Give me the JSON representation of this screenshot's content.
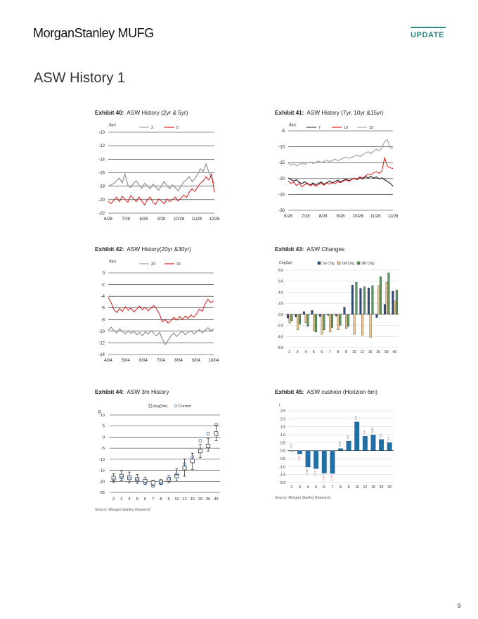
{
  "header": {
    "logo": "MorganStanley MUFG",
    "badge": "UPDATE"
  },
  "page_title": "ASW History 1",
  "page_number": "9",
  "exhibits": [
    {
      "num": "Exhibit 40:",
      "title": "ASW History (2yr & 5yr)"
    },
    {
      "num": "Exhibit 41:",
      "title": "ASW History (7yr, 10yr &15yr)"
    },
    {
      "num": "Exhibit 42:",
      "title": "ASW History(20yr &30yr)"
    },
    {
      "num": "Exhibit 43:",
      "title": "ASW Changes"
    },
    {
      "num": "Exhibit 44:",
      "title": "ASW 3m History"
    },
    {
      "num": "Exhibit 45:",
      "title": "ASW cushion (Horizion 6m)"
    }
  ],
  "sources": {
    "left": "Source: Morgan Stanley Research",
    "right": "Source: Morgan Stanley Research"
  },
  "chart_data": [
    {
      "type": "line",
      "ylabel": "(bp)",
      "ylim": [
        -22,
        -10
      ],
      "yticks": [
        "-10",
        "-12",
        "-14",
        "-16",
        "-18",
        "-20",
        "-22"
      ],
      "xticks": [
        "6/28",
        "7/28",
        "8/28",
        "9/28",
        "10/28",
        "11/28",
        "12/28"
      ],
      "legend_position": "top",
      "series": [
        {
          "name": "2",
          "color": "#999999",
          "values": [
            -18,
            -17.8,
            -17.6,
            -17.2,
            -16.8,
            -17.5,
            -16.2,
            -17.8,
            -18.2,
            -17.6,
            -17.2,
            -17.8,
            -18.3,
            -17.6,
            -17.9,
            -18.4,
            -17.7,
            -18.1,
            -18.6,
            -18.0,
            -17.3,
            -17.9,
            -18.4,
            -17.8,
            -18.2,
            -18.7,
            -18.0,
            -17.4,
            -17.0,
            -16.6,
            -17.3,
            -16.9,
            -16.2,
            -15.4,
            -15.8,
            -14.7,
            -15.9,
            -16.8,
            -17.6
          ]
        },
        {
          "name": "5",
          "color": "#e00000",
          "values": [
            -20.2,
            -20.6,
            -20.1,
            -19.6,
            -20.3,
            -19.5,
            -19.9,
            -20.4,
            -19.4,
            -19.8,
            -20.3,
            -19.6,
            -20.2,
            -20.8,
            -20.0,
            -19.6,
            -20.4,
            -20.7,
            -19.9,
            -20.2,
            -20.6,
            -19.9,
            -20.3,
            -20.0,
            -19.6,
            -20.2,
            -19.8,
            -19.3,
            -19.7,
            -18.9,
            -18.4,
            -18.8,
            -18.1,
            -17.6,
            -17.2,
            -16.6,
            -17.1,
            -16.2,
            -18.9
          ]
        }
      ]
    },
    {
      "type": "line",
      "ylabel": "(bp)",
      "ylim": [
        -30,
        -5
      ],
      "yticks": [
        "-5",
        "-10",
        "-15",
        "-20",
        "-25",
        "-30"
      ],
      "xticks": [
        "6/28",
        "7/28",
        "8/28",
        "9/28",
        "10/28",
        "11/28",
        "12/28"
      ],
      "legend_position": "top",
      "series": [
        {
          "name": "7",
          "color": "#333333",
          "values": [
            -19.8,
            -20.3,
            -20.8,
            -20.4,
            -21.2,
            -21.6,
            -21.0,
            -21.7,
            -22.1,
            -21.4,
            -22.0,
            -21.5,
            -21.1,
            -21.8,
            -21.3,
            -20.8,
            -21.4,
            -20.9,
            -20.5,
            -21.1,
            -20.6,
            -20.2,
            -20.7,
            -20.3,
            -19.9,
            -20.4,
            -19.6,
            -20.1,
            -19.4,
            -19.8,
            -19.3,
            -19.9,
            -19.5,
            -20.1,
            -19.8,
            -20.4,
            -20.9,
            -21.5,
            -22.4
          ]
        },
        {
          "name": "10",
          "color": "#e00000",
          "values": [
            -20.8,
            -21.6,
            -21.1,
            -22.2,
            -21.5,
            -22.6,
            -22.0,
            -21.4,
            -22.3,
            -21.7,
            -22.5,
            -21.9,
            -21.5,
            -22.1,
            -21.4,
            -21.8,
            -21.2,
            -21.6,
            -21.0,
            -21.3,
            -20.8,
            -20.4,
            -20.9,
            -20.3,
            -19.9,
            -20.2,
            -19.5,
            -19.9,
            -19.2,
            -18.6,
            -18.9,
            -18.2,
            -17.8,
            -18.4,
            -17.6,
            -13.4,
            -16.2,
            -16.6,
            -16.9
          ]
        },
        {
          "name": "15",
          "color": "#aaaaaa",
          "values": [
            -15.2,
            -15.8,
            -15.4,
            -16.0,
            -15.6,
            -15.1,
            -15.5,
            -15.0,
            -14.8,
            -15.3,
            -14.9,
            -14.5,
            -15.0,
            -14.6,
            -14.2,
            -14.7,
            -14.3,
            -13.9,
            -14.4,
            -14.0,
            -13.6,
            -13.2,
            -13.7,
            -13.3,
            -13.0,
            -12.6,
            -13.1,
            -12.5,
            -12.0,
            -11.6,
            -12.2,
            -11.4,
            -10.8,
            -11.3,
            -10.4,
            -8.3,
            -7.8,
            -10.4,
            -10.6
          ]
        }
      ]
    },
    {
      "type": "line",
      "ylabel": "(bp)",
      "ylim": [
        -14,
        0
      ],
      "yticks": [
        "0",
        "-2",
        "-4",
        "-6",
        "-8",
        "-10",
        "-12",
        "-14"
      ],
      "xticks": [
        "4/04",
        "5/04",
        "6/04",
        "7/04",
        "8/04",
        "9/04",
        "10/04"
      ],
      "legend_position": "top",
      "series": [
        {
          "name": "20",
          "color": "#999999",
          "values": [
            -9.8,
            -9.3,
            -9.9,
            -10.3,
            -9.6,
            -10.1,
            -10.5,
            -9.9,
            -10.4,
            -10.0,
            -10.6,
            -10.2,
            -10.8,
            -10.1,
            -10.5,
            -9.9,
            -10.4,
            -10.8,
            -10.2,
            -11.4,
            -12.3,
            -11.6,
            -10.8,
            -10.3,
            -10.9,
            -10.4,
            -10.0,
            -10.6,
            -10.2,
            -9.9,
            -10.5,
            -10.1,
            -9.7,
            -10.3,
            -9.8,
            -9.4,
            -9.9,
            -9.6
          ]
        },
        {
          "name": "30",
          "color": "#e00000",
          "values": [
            -4.2,
            -5.1,
            -6.3,
            -6.8,
            -6.1,
            -6.6,
            -5.8,
            -6.4,
            -6.0,
            -6.7,
            -6.2,
            -5.7,
            -6.3,
            -5.9,
            -6.5,
            -6.0,
            -5.6,
            -6.2,
            -7.1,
            -8.4,
            -8.0,
            -8.6,
            -8.2,
            -7.6,
            -8.1,
            -7.5,
            -8.0,
            -7.4,
            -7.8,
            -7.2,
            -7.6,
            -7.0,
            -6.2,
            -6.6,
            -5.3,
            -4.5,
            -5.1,
            -4.8
          ]
        }
      ]
    },
    {
      "type": "bar",
      "ylabel": "Chg(bp)",
      "ylim": [
        -6,
        8
      ],
      "yticks": [
        "8.0",
        "6.0",
        "4.0",
        "2.0",
        "0.0",
        "-2.0",
        "-4.0",
        "-6.0"
      ],
      "categories": [
        "2",
        "3",
        "4",
        "5",
        "6",
        "7",
        "8",
        "9",
        "10",
        "12",
        "15",
        "20",
        "30",
        "40"
      ],
      "legend_position": "top",
      "series": [
        {
          "name": "1w Chg",
          "color": "#2e4a7d",
          "values": [
            -0.7,
            -0.5,
            0.5,
            0.7,
            -0.4,
            -0.2,
            -0.3,
            1.3,
            5.3,
            4.7,
            4.8,
            -0.6,
            1.8,
            4.2
          ]
        },
        {
          "name": "1M Chg",
          "color": "#f0c78a",
          "values": [
            -1.6,
            -2.8,
            -1.5,
            -3.0,
            -3.6,
            -3.2,
            -2.8,
            -2.6,
            -3.6,
            -3.8,
            -4.2,
            5.2,
            5.8,
            2.4
          ]
        },
        {
          "name": "3M Chg",
          "color": "#5a9a5e",
          "values": [
            -1.2,
            -1.8,
            -2.2,
            -3.2,
            -2.8,
            -2.4,
            -2.0,
            -2.2,
            5.8,
            5.0,
            5.2,
            6.8,
            7.5,
            4.4
          ]
        }
      ]
    },
    {
      "type": "scatter",
      "ylabel": "bp",
      "ylim": [
        -25,
        10
      ],
      "yticks": [
        "10",
        "5",
        "0",
        "-5",
        "-10",
        "-15",
        "-20",
        "-25"
      ],
      "categories": [
        "2",
        "3",
        "4",
        "5",
        "6",
        "7",
        "8",
        "9",
        "10",
        "12",
        "15",
        "20",
        "30",
        "40"
      ],
      "legend_position": "top",
      "series": [
        {
          "name": "Avg(3m)",
          "color": "#222222",
          "avg": [
            -18.5,
            -17.6,
            -18.4,
            -19.0,
            -19.9,
            -20.7,
            -20.3,
            -19.2,
            -17.7,
            -14.0,
            -10.8,
            -6.3,
            -4.0,
            1.6
          ],
          "high": [
            -16.5,
            -15.2,
            -15.8,
            -16.9,
            -18.2,
            -19.6,
            -19.2,
            -17.4,
            -14.3,
            -9.9,
            -7.3,
            -3.2,
            -0.7,
            5.4
          ],
          "low": [
            -20.4,
            -19.8,
            -20.7,
            -20.9,
            -21.3,
            -22.1,
            -21.4,
            -20.7,
            -19.9,
            -17.7,
            -14.6,
            -9.2,
            -6.3,
            -1.6
          ]
        },
        {
          "name": "Current",
          "color": "#3f6fb0",
          "values": [
            -19.5,
            -18.3,
            -18.7,
            -19.6,
            -20.9,
            -22.2,
            -21.0,
            -18.8,
            -16.8,
            -12.2,
            -9.0,
            -1.6,
            1.6,
            5.7
          ]
        }
      ]
    },
    {
      "type": "bar",
      "ylabel": "(",
      "ylim": [
        -2,
        2.5
      ],
      "yticks": [
        "2.5",
        "2.0",
        "1.5",
        "1.0",
        "0.5",
        "0.0",
        "-0.5",
        "-1.0",
        "-1.5",
        "-2.0"
      ],
      "categories": [
        "2",
        "3",
        "4",
        "5",
        "6",
        "7",
        "8",
        "9",
        "10",
        "12",
        "15",
        "20",
        "30"
      ],
      "series": [
        {
          "name": "",
          "color": "#1f6fa8",
          "values": [
            0.0,
            -0.2,
            -1.03,
            -1.13,
            -1.41,
            -1.43,
            0.13,
            0.6,
            1.8,
            0.9,
            0.99,
            0.7,
            0.5
          ],
          "labels": [
            "-0.0",
            "-0.2",
            "-1.03",
            "-1.13",
            "-1.41",
            "-1.43",
            "0.13",
            "0.6",
            "1.8",
            "0.9",
            "0.99",
            "0.7",
            "0.5"
          ]
        }
      ]
    }
  ]
}
